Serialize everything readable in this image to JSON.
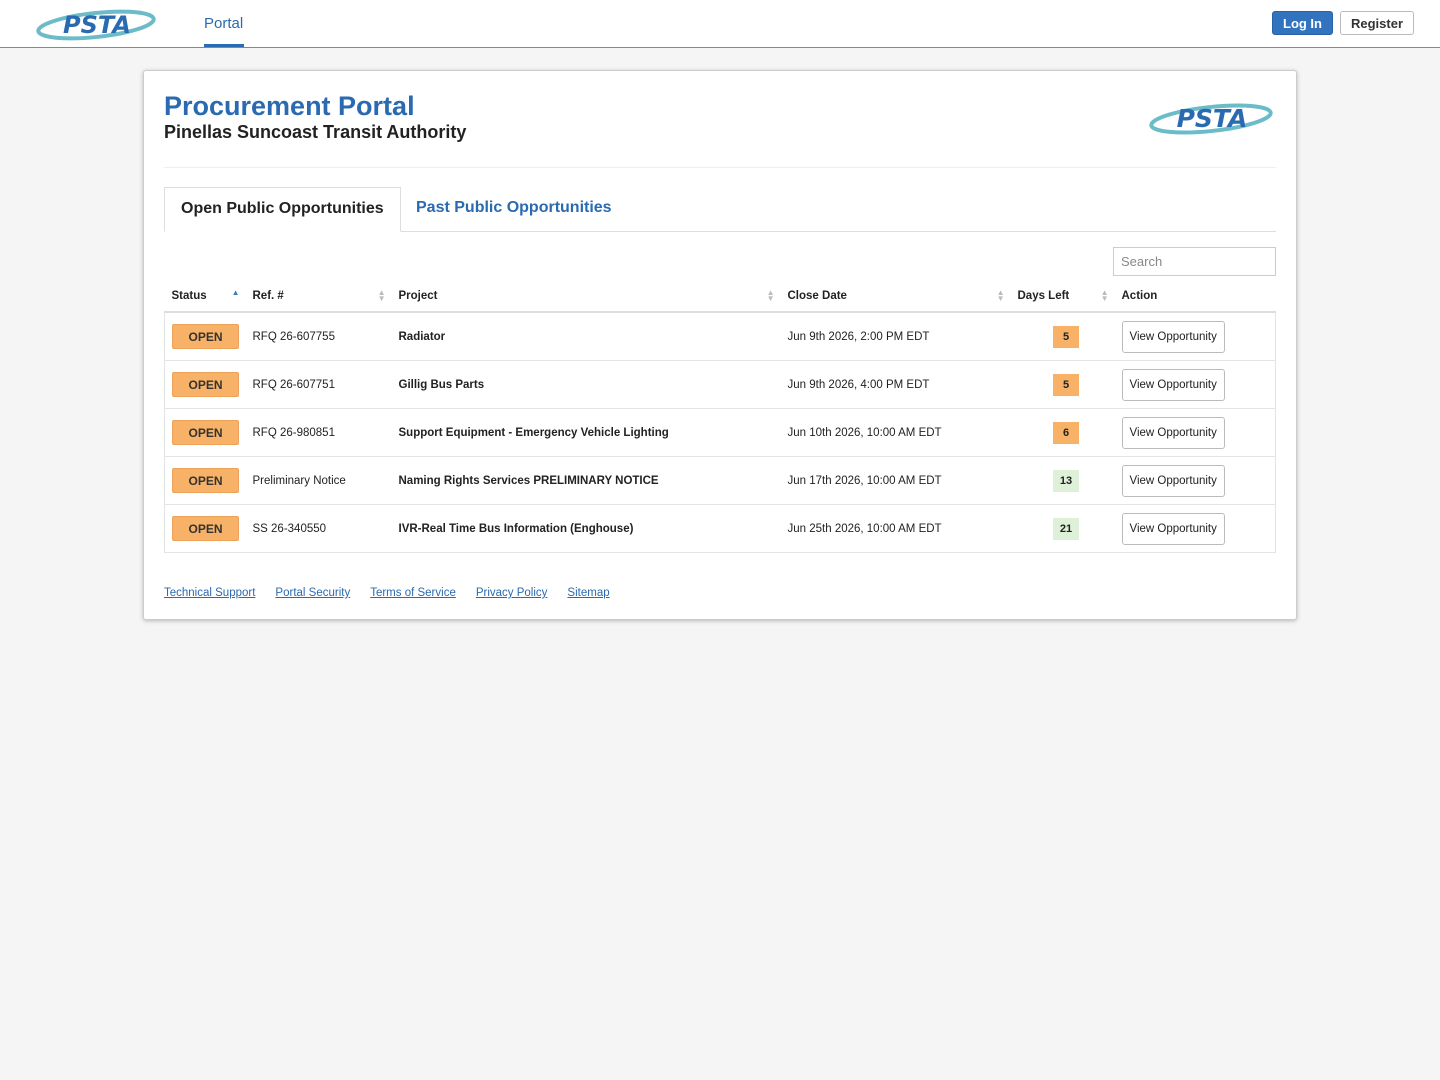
{
  "nav": {
    "logo": "PSTA",
    "link": "Portal",
    "login": "Log In",
    "register": "Register"
  },
  "header": {
    "title": "Procurement Portal",
    "subtitle": "Pinellas Suncoast Transit Authority",
    "logo": "PSTA"
  },
  "tabs": [
    "Open Public Opportunities",
    "Past Public Opportunities"
  ],
  "search": "Search",
  "table": {
    "columns": [
      "Status",
      "Ref. #",
      "Project",
      "Close Date",
      "Days Left",
      "Action"
    ],
    "rows": [
      {
        "status": "OPEN",
        "ref": "RFQ 26-607755",
        "project": "Radiator",
        "close_date": "Jun 9th 2026, 2:00 PM EDT",
        "days_left": 5,
        "days_color": "#f7b267",
        "action": "View Opportunity"
      },
      {
        "status": "OPEN",
        "ref": "RFQ 26-607751",
        "project": "Gillig Bus Parts",
        "close_date": "Jun 9th 2026, 4:00 PM EDT",
        "days_left": 5,
        "days_color": "#f7b267",
        "action": "View Opportunity"
      },
      {
        "status": "OPEN",
        "ref": "RFQ 26-980851",
        "project": "Support Equipment - Emergency Vehicle Lighting",
        "close_date": "Jun 10th 2026, 10:00 AM EDT",
        "days_left": 6,
        "days_color": "#f7b267",
        "action": "View Opportunity"
      },
      {
        "status": "OPEN",
        "ref": "Preliminary Notice",
        "project": "Naming Rights Services PRELIMINARY NOTICE",
        "close_date": "Jun 17th 2026, 10:00 AM EDT",
        "days_left": 13,
        "days_color": "#dff0d8",
        "action": "View Opportunity"
      },
      {
        "status": "OPEN",
        "ref": "SS 26-340550",
        "project": "IVR-Real Time Bus Information (Enghouse)",
        "close_date": "Jun 25th 2026, 10:00 AM EDT",
        "days_left": 21,
        "days_color": "#dff0d8",
        "action": "View Opportunity"
      }
    ]
  },
  "footer": [
    "Technical Support",
    "Portal Security",
    "Terms of Service",
    "Privacy Policy",
    "Sitemap"
  ]
}
